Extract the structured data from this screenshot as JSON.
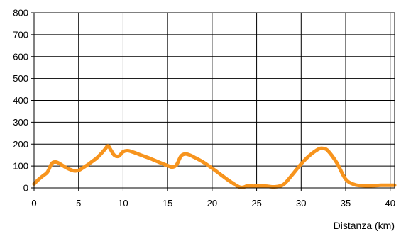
{
  "chart_data": {
    "type": "line",
    "title": "",
    "xlabel": "Distanza (km)",
    "ylabel": "",
    "xlim": [
      0,
      40.5
    ],
    "ylim": [
      0,
      800
    ],
    "x_ticks": [
      0,
      5,
      10,
      15,
      20,
      25,
      30,
      35,
      40
    ],
    "y_ticks": [
      0,
      100,
      200,
      300,
      400,
      500,
      600,
      700,
      800
    ],
    "grid": true,
    "legend": "none",
    "line_color": "#F7941D",
    "grid_color": "#000000",
    "series": [
      {
        "x": [
          0,
          0.5,
          1,
          1.5,
          2,
          2.5,
          3,
          3.5,
          4,
          4.5,
          5,
          5.5,
          6,
          6.5,
          7,
          7.5,
          8,
          8.3,
          8.6,
          9,
          9.5,
          10,
          10.5,
          11,
          11.5,
          12,
          13,
          14,
          15,
          15.5,
          16,
          16.5,
          17,
          17.5,
          18,
          19,
          20,
          21,
          22,
          23,
          23.5,
          24,
          24.5,
          25,
          26,
          27,
          28,
          29,
          30,
          31,
          32,
          32.5,
          33,
          34,
          35,
          36,
          37,
          38,
          39,
          40,
          40.5
        ],
        "y": [
          18,
          38,
          55,
          72,
          112,
          118,
          108,
          95,
          85,
          78,
          80,
          92,
          105,
          120,
          135,
          155,
          178,
          192,
          175,
          150,
          145,
          165,
          170,
          165,
          158,
          150,
          135,
          118,
          102,
          95,
          105,
          145,
          155,
          150,
          140,
          118,
          90,
          60,
          30,
          5,
          3,
          10,
          8,
          8,
          8,
          5,
          15,
          60,
          110,
          150,
          178,
          180,
          170,
          115,
          40,
          15,
          10,
          10,
          12,
          12,
          12
        ]
      }
    ]
  }
}
